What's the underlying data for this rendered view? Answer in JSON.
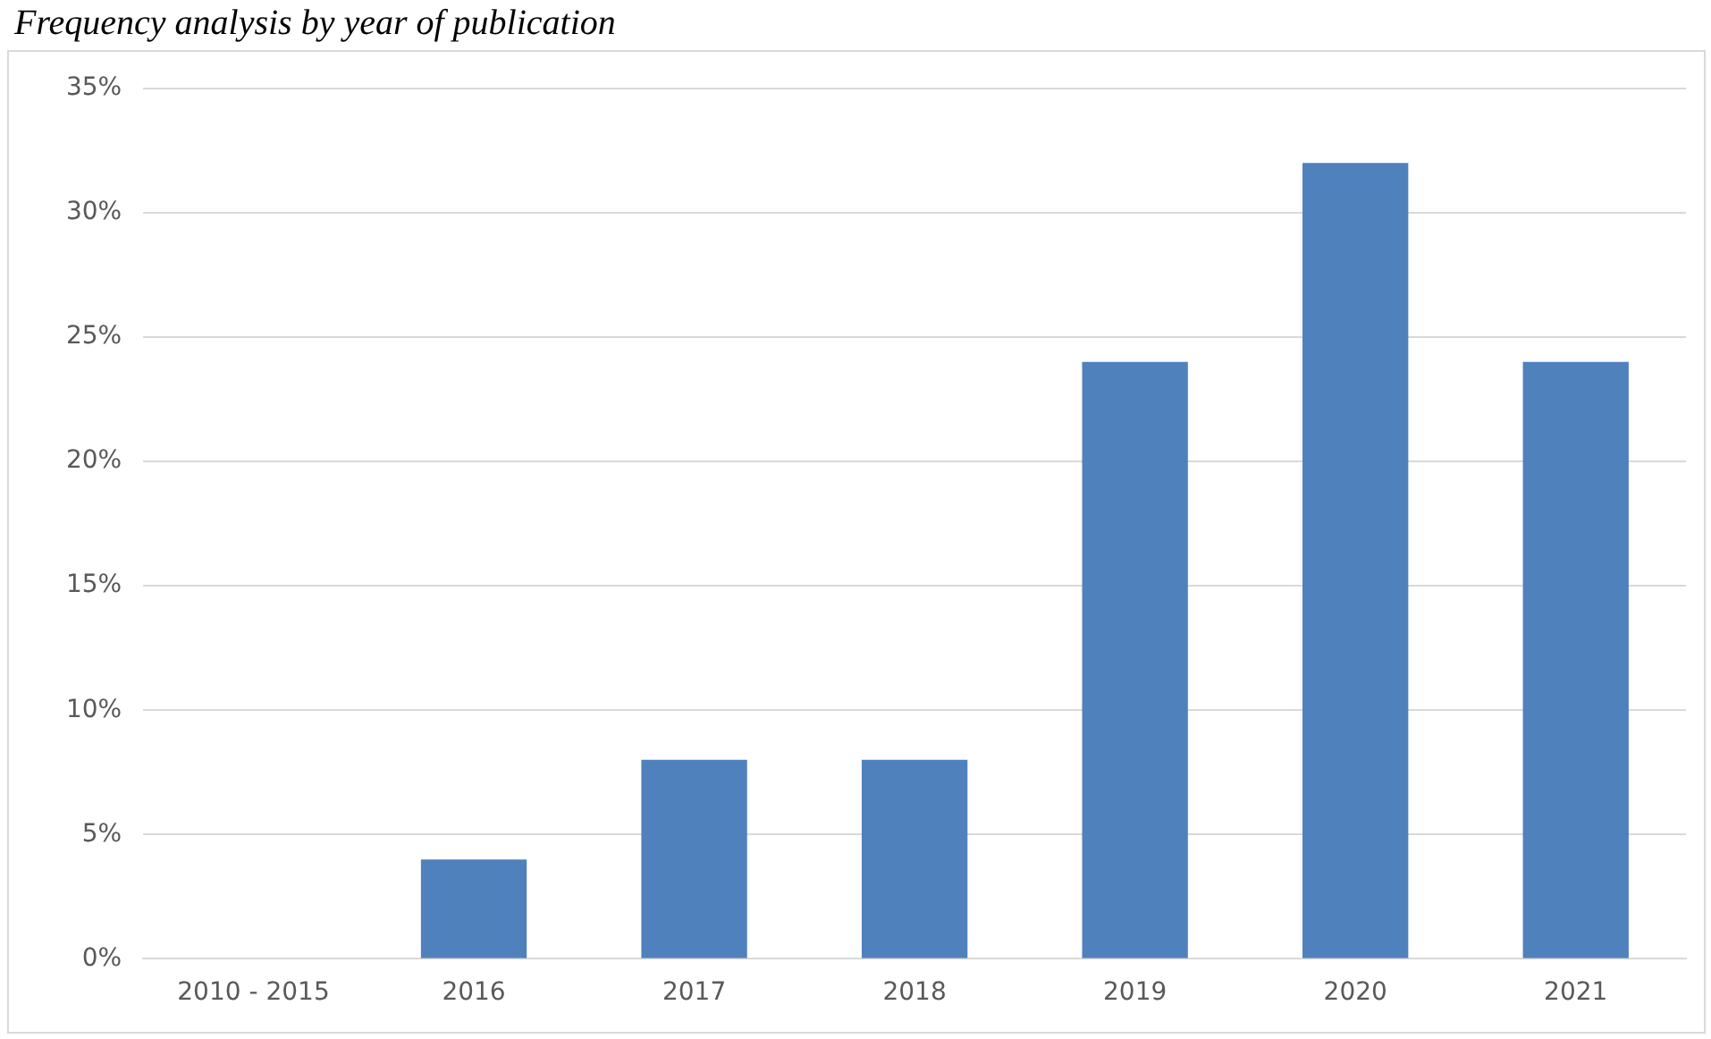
{
  "chart_data": {
    "type": "bar",
    "title": "Frequency analysis by year of publication",
    "categories": [
      "2010 - 2015",
      "2016",
      "2017",
      "2018",
      "2019",
      "2020",
      "2021"
    ],
    "values": [
      0,
      4,
      8,
      8,
      24,
      32,
      24
    ],
    "color": "#4f81bd",
    "ylim": [
      0,
      35
    ],
    "yticks": [
      {
        "value": 0,
        "label": "0%"
      },
      {
        "value": 5,
        "label": "5%"
      },
      {
        "value": 10,
        "label": "10%"
      },
      {
        "value": 15,
        "label": "15%"
      },
      {
        "value": 20,
        "label": "20%"
      },
      {
        "value": 25,
        "label": "25%"
      },
      {
        "value": 30,
        "label": "30%"
      },
      {
        "value": 35,
        "label": "35%"
      }
    ],
    "grid": "y"
  }
}
